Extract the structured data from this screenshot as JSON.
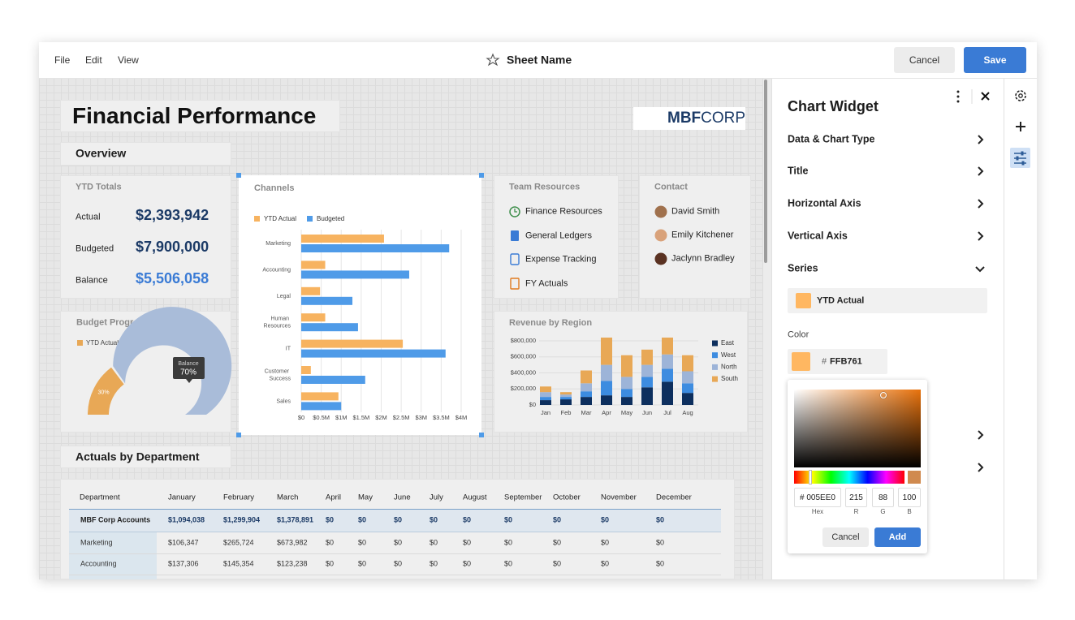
{
  "menu": [
    "File",
    "Edit",
    "View"
  ],
  "sheet_name": "Sheet Name",
  "header_buttons": {
    "cancel": "Cancel",
    "save": "Save"
  },
  "dashboard": {
    "title": "Financial Performance",
    "logo": {
      "mark": "MBF",
      "text": "CORP"
    },
    "overview": "Overview",
    "ytd_totals": {
      "title": "YTD Totals",
      "rows": [
        {
          "label": "Actual",
          "value": "$2,393,942"
        },
        {
          "label": "Budgeted",
          "value": "$7,900,000"
        },
        {
          "label": "Balance",
          "value": "$5,506,058"
        }
      ]
    },
    "team_resources": {
      "title": "Team Resources",
      "items": [
        "Finance Resources",
        "General Ledgers",
        "Expense Tracking",
        "FY Actuals"
      ]
    },
    "contact": {
      "title": "Contact",
      "people": [
        "David Smith",
        "Emily Kitchener",
        "Jaclynn Bradley"
      ]
    },
    "actuals": {
      "title": "Actuals by Department",
      "columns": [
        "Department",
        "January",
        "February",
        "March",
        "April",
        "May",
        "June",
        "July",
        "August",
        "September",
        "October",
        "November",
        "December"
      ],
      "rows": [
        [
          "MBF Corp Accounts",
          "$1,094,038",
          "$1,299,904",
          "$1,378,891",
          "$0",
          "$0",
          "$0",
          "$0",
          "$0",
          "$0",
          "$0",
          "$0",
          "$0"
        ],
        [
          "Marketing",
          "$106,347",
          "$265,724",
          "$673,982",
          "$0",
          "$0",
          "$0",
          "$0",
          "$0",
          "$0",
          "$0",
          "$0",
          "$0"
        ],
        [
          "Accounting",
          "$137,306",
          "$145,354",
          "$123,238",
          "$0",
          "$0",
          "$0",
          "$0",
          "$0",
          "$0",
          "$0",
          "$0",
          "$0"
        ]
      ]
    }
  },
  "chart_data": [
    {
      "type": "gauge",
      "title": "Budget Progress",
      "categories": [
        "YTD Actual",
        "Balance"
      ],
      "values": [
        30,
        70
      ],
      "value_labels": [
        "30%",
        "70%"
      ],
      "colors": [
        "#e8a856",
        "#a9bcd9"
      ]
    },
    {
      "type": "bar",
      "orientation": "horizontal",
      "title": "Channels",
      "categories": [
        "Marketing",
        "Accounting",
        "Legal",
        "Human Resources",
        "IT",
        "Customer Success",
        "Sales"
      ],
      "series": [
        {
          "name": "YTD Actual",
          "color": "#f7b360",
          "values": [
            2.07,
            0.6,
            0.47,
            0.6,
            2.54,
            0.24,
            0.93
          ]
        },
        {
          "name": "Budgeted",
          "color": "#4f9be8",
          "values": [
            3.7,
            2.7,
            1.28,
            1.42,
            3.61,
            1.6,
            1.0
          ]
        }
      ],
      "xlim": [
        0,
        4
      ],
      "xticks": [
        {
          "value": 0,
          "label": "$0"
        },
        {
          "value": 0.5,
          "label": "$0.5M"
        },
        {
          "value": 1,
          "label": "$1M"
        },
        {
          "value": 1.5,
          "label": "$1.5M"
        },
        {
          "value": 2,
          "label": "$2M"
        },
        {
          "value": 2.5,
          "label": "$2.5M"
        },
        {
          "value": 3,
          "label": "$3M"
        },
        {
          "value": 3.5,
          "label": "$3.5M"
        },
        {
          "value": 4,
          "label": "$4M"
        }
      ],
      "grid": true,
      "legend": "top"
    },
    {
      "type": "stacked_bar",
      "title": "Revenue by Region",
      "categories": [
        "Jan",
        "Feb",
        "Mar",
        "Apr",
        "May",
        "Jun",
        "Jul",
        "Aug"
      ],
      "series": [
        {
          "name": "East",
          "color": "#0d2f5e",
          "values": [
            60000,
            70000,
            100000,
            120000,
            100000,
            220000,
            290000,
            150000
          ]
        },
        {
          "name": "West",
          "color": "#3d8ce0",
          "values": [
            40000,
            30000,
            70000,
            180000,
            100000,
            130000,
            160000,
            120000
          ]
        },
        {
          "name": "North",
          "color": "#9db4d8",
          "values": [
            60000,
            30000,
            100000,
            200000,
            150000,
            150000,
            180000,
            150000
          ]
        },
        {
          "name": "South",
          "color": "#e8a856",
          "values": [
            70000,
            30000,
            160000,
            340000,
            270000,
            190000,
            210000,
            200000
          ]
        }
      ],
      "ylim": [
        0,
        850000
      ],
      "yticks": [
        {
          "value": 0,
          "label": "$0"
        },
        {
          "value": 200000,
          "label": "$200,000"
        },
        {
          "value": 400000,
          "label": "$400,000"
        },
        {
          "value": 600000,
          "label": "$600,000"
        },
        {
          "value": 800000,
          "label": "$800,000"
        }
      ],
      "grid": true,
      "legend": "right"
    }
  ],
  "panel": {
    "title": "Chart Widget",
    "sections": [
      "Data & Chart Type",
      "Title",
      "Horizontal Axis",
      "Vertical Axis",
      "Series"
    ],
    "series_select": "YTD Actual",
    "color_label": "Color",
    "color_prefix": "#",
    "color_hex": "FFB761",
    "picker": {
      "hex": "# 005EE0",
      "r": 215,
      "g": 88,
      "b": 100,
      "labels": [
        "Hex",
        "R",
        "G",
        "B"
      ],
      "cancel": "Cancel",
      "add": "Add"
    }
  }
}
